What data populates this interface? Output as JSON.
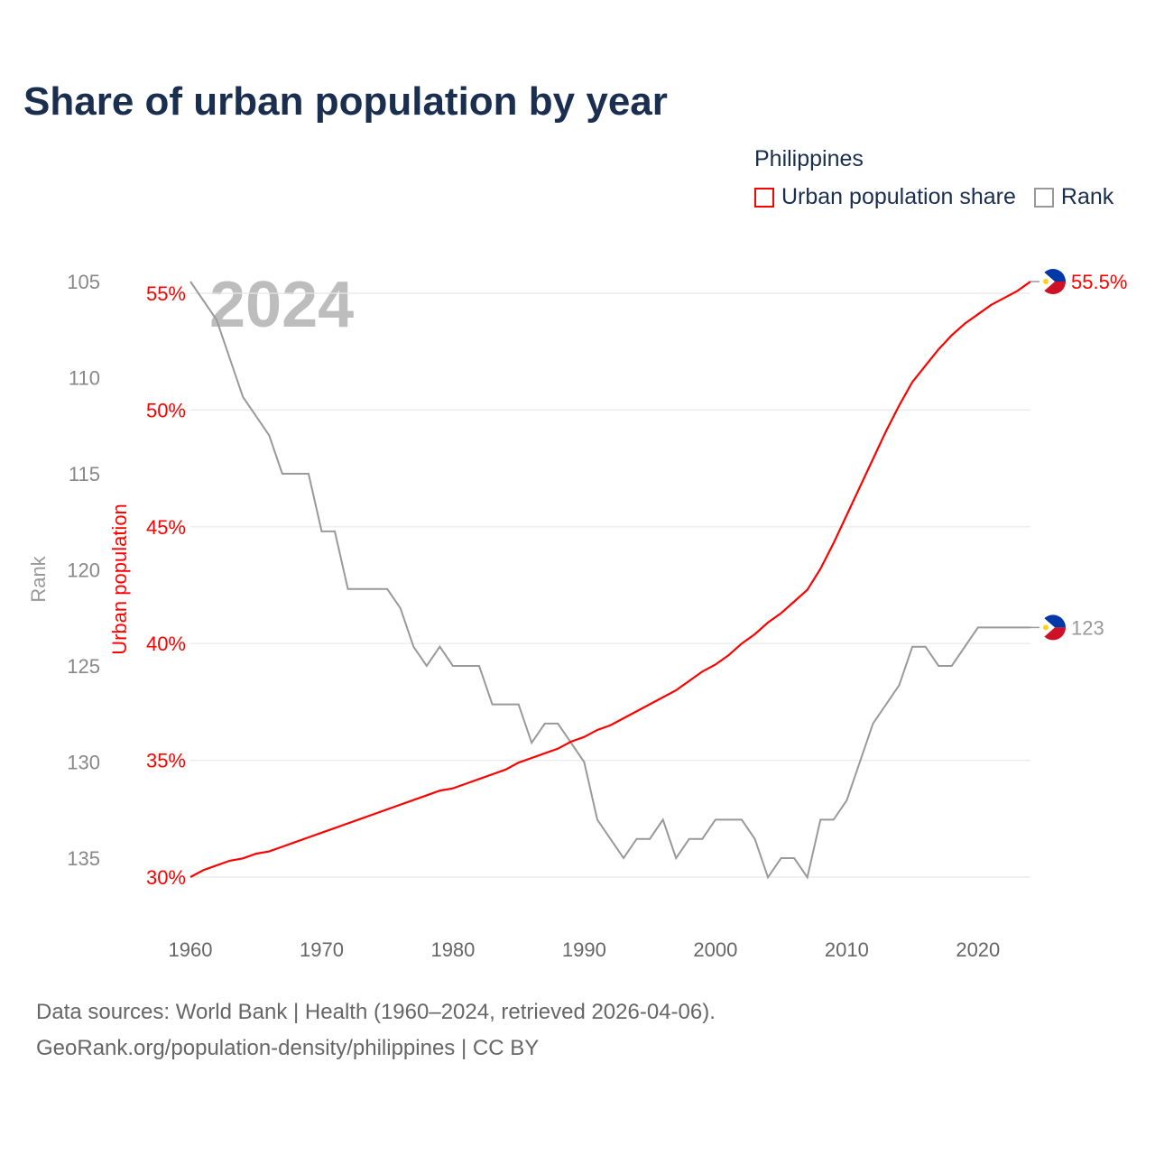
{
  "title": "Share of urban population by year",
  "legend": {
    "title": "Philippines",
    "items": [
      {
        "label": "Urban population share",
        "color": "#ff0000"
      },
      {
        "label": "Rank",
        "color": "#999999"
      }
    ]
  },
  "watermark_year": "2024",
  "footer": {
    "line1": "Data sources: World Bank | Health (1960–2024, retrieved 2026-04-06).",
    "line2": "GeoRank.org/population-density/philippines | CC BY"
  },
  "chart_data": {
    "type": "line",
    "title": "Share of urban population by year",
    "xlabel": "",
    "ylabel_left": "Rank",
    "ylabel_right": "Urban population",
    "x_ticks": [
      "1960",
      "1970",
      "1980",
      "1990",
      "2000",
      "2010",
      "2020"
    ],
    "rank_ticks": [
      "105",
      "110",
      "115",
      "120",
      "125",
      "130",
      "135"
    ],
    "urban_ticks": [
      "55%",
      "50%",
      "45%",
      "40%",
      "35%",
      "30%"
    ],
    "xlim": [
      1960,
      2024
    ],
    "rank_lim": [
      105,
      135
    ],
    "urban_lim": [
      30,
      55
    ],
    "end_labels": {
      "urban": "55.5%",
      "rank": "123"
    },
    "series": [
      {
        "name": "Urban population share",
        "color": "#ff0000",
        "x": [
          1960,
          1961,
          1962,
          1963,
          1964,
          1965,
          1966,
          1967,
          1968,
          1969,
          1970,
          1971,
          1972,
          1973,
          1974,
          1975,
          1976,
          1977,
          1978,
          1979,
          1980,
          1981,
          1982,
          1983,
          1984,
          1985,
          1986,
          1987,
          1988,
          1989,
          1990,
          1991,
          1992,
          1993,
          1994,
          1995,
          1996,
          1997,
          1998,
          1999,
          2000,
          2001,
          2002,
          2003,
          2004,
          2005,
          2006,
          2007,
          2008,
          2009,
          2010,
          2011,
          2012,
          2013,
          2014,
          2015,
          2016,
          2017,
          2018,
          2019,
          2020,
          2021,
          2022,
          2023,
          2024
        ],
        "values": [
          30.0,
          30.3,
          30.5,
          30.7,
          30.8,
          31.0,
          31.1,
          31.3,
          31.5,
          31.7,
          31.9,
          32.1,
          32.3,
          32.5,
          32.7,
          32.9,
          33.1,
          33.3,
          33.5,
          33.7,
          33.8,
          34.0,
          34.2,
          34.4,
          34.6,
          34.9,
          35.1,
          35.3,
          35.5,
          35.8,
          36.0,
          36.3,
          36.5,
          36.8,
          37.1,
          37.4,
          37.7,
          38.0,
          38.4,
          38.8,
          39.1,
          39.5,
          40.0,
          40.4,
          40.9,
          41.3,
          41.8,
          42.3,
          43.2,
          44.3,
          45.5,
          46.7,
          47.9,
          49.1,
          50.2,
          51.2,
          51.9,
          52.6,
          53.2,
          53.7,
          54.1,
          54.5,
          54.8,
          55.1,
          55.5
        ]
      },
      {
        "name": "Rank",
        "color": "#999999",
        "x": [
          1960,
          1962,
          1964,
          1966,
          1967,
          1969,
          1970,
          1971,
          1972,
          1975,
          1976,
          1977,
          1978,
          1979,
          1980,
          1982,
          1983,
          1985,
          1986,
          1987,
          1988,
          1989,
          1990,
          1991,
          1993,
          1994,
          1995,
          1996,
          1997,
          1998,
          1999,
          2000,
          2002,
          2003,
          2004,
          2005,
          2006,
          2007,
          2008,
          2009,
          2010,
          2012,
          2014,
          2015,
          2016,
          2017,
          2018,
          2020,
          2024
        ],
        "values": [
          105,
          107,
          111,
          113,
          115,
          115,
          118,
          118,
          121,
          121,
          122,
          124,
          125,
          124,
          125,
          125,
          127,
          127,
          129,
          128,
          128,
          129,
          130,
          133,
          135,
          134,
          134,
          133,
          135,
          134,
          134,
          133,
          133,
          134,
          136,
          135,
          135,
          136,
          133,
          133,
          132,
          128,
          126,
          124,
          124,
          125,
          125,
          123,
          123
        ]
      }
    ]
  }
}
